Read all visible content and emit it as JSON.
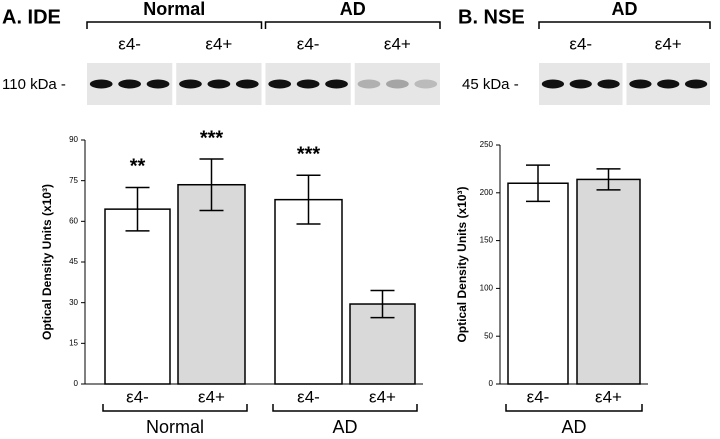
{
  "chart_data": [
    {
      "type": "bar",
      "panel": "A. IDE",
      "blot": {
        "marker": "110 kDa -",
        "groups": [
          "Normal",
          "AD"
        ],
        "lanes": [
          "ε4-",
          "ε4+",
          "ε4-",
          "ε4+"
        ]
      },
      "y_label": "Optical Density Units (x10³)",
      "categories": [
        "ε4-",
        "ε4+",
        "ε4-",
        "ε4+"
      ],
      "groups": [
        "Normal",
        "AD"
      ],
      "values": [
        64.5,
        73.5,
        68,
        29.5
      ],
      "errors": [
        8,
        9.5,
        9,
        5
      ],
      "annotations": [
        "**",
        "***",
        "***",
        null
      ],
      "colors": [
        "#ffffff",
        "#d9d9d9",
        "#ffffff",
        "#d9d9d9"
      ],
      "ylim": [
        0,
        90
      ],
      "yticks": [
        0,
        15,
        30,
        45,
        60,
        75,
        90
      ]
    },
    {
      "type": "bar",
      "panel": "B. NSE",
      "blot": {
        "marker": "45 kDa -",
        "groups": [
          "AD"
        ],
        "lanes": [
          "ε4-",
          "ε4+"
        ]
      },
      "y_label": "Optical Density Units (x10³)",
      "categories": [
        "ε4-",
        "ε4+"
      ],
      "groups": [
        "AD"
      ],
      "values": [
        210,
        214
      ],
      "errors": [
        19,
        11
      ],
      "annotations": [
        null,
        null
      ],
      "colors": [
        "#ffffff",
        "#d9d9d9"
      ],
      "ylim": [
        0,
        250
      ],
      "yticks": [
        0,
        50,
        100,
        150,
        200,
        250
      ]
    }
  ]
}
